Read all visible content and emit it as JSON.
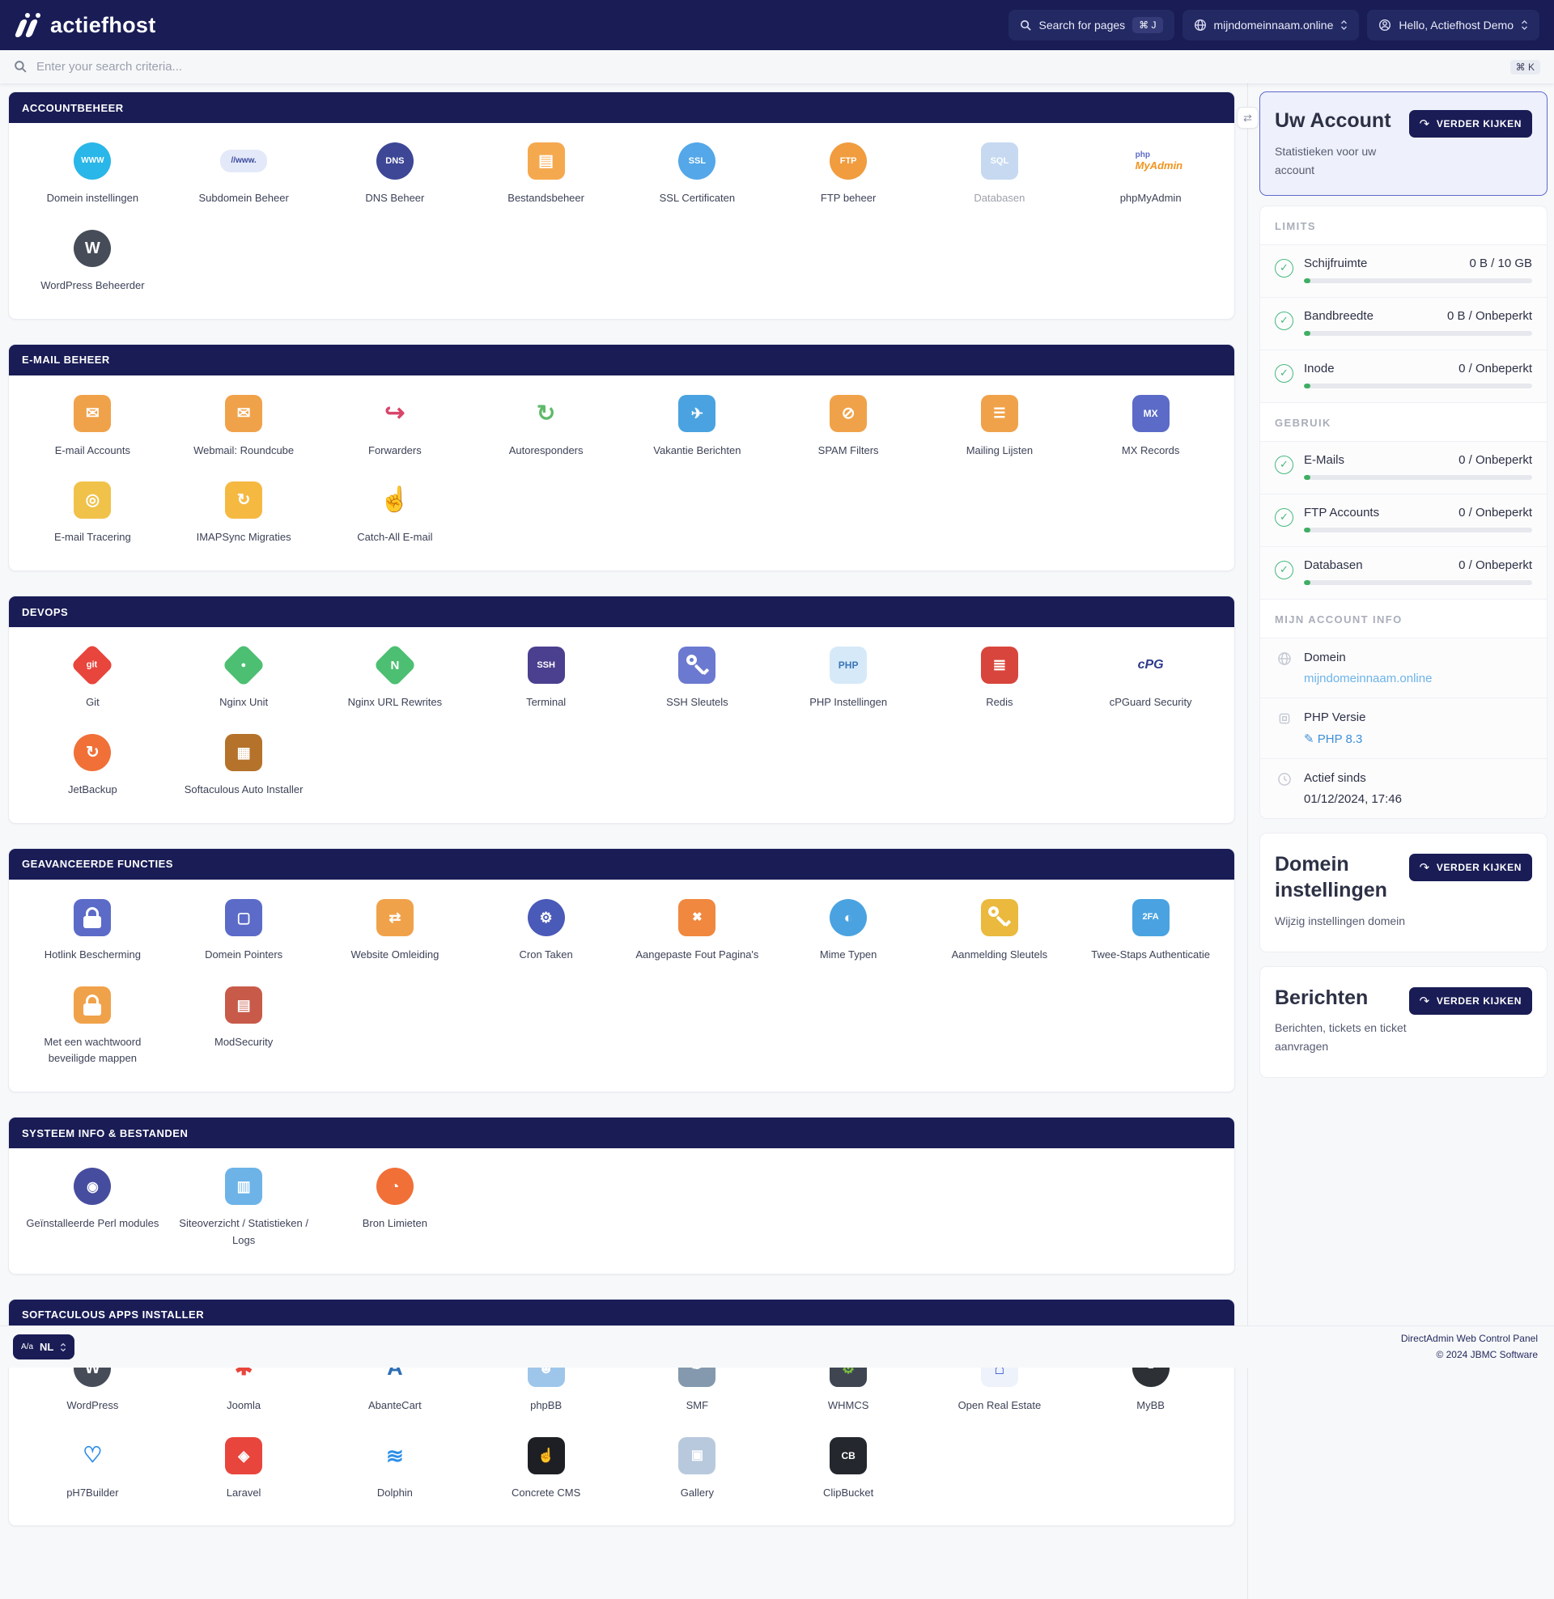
{
  "header": {
    "logo": "actiefhost",
    "search_pages_label": "Search for pages",
    "search_pages_shortcut": "⌘ J",
    "domain_selector": "mijndomeinnaam.online",
    "user_menu": "Hello, Actiefhost Demo"
  },
  "search": {
    "placeholder": "Enter your search criteria...",
    "shortcut": "⌘ K"
  },
  "sections": [
    {
      "title": "ACCOUNTBEHEER",
      "items": [
        {
          "label": "Domein instellingen",
          "icon": {
            "name": "globe-www-icon",
            "kind": "badge",
            "shape": "circle",
            "bg": "#29b6e8",
            "fg": "#fff",
            "text": "WWW",
            "fs": 10
          }
        },
        {
          "label": "Subdomein Beheer",
          "icon": {
            "name": "url-bar-icon",
            "kind": "badge",
            "shape": "pill",
            "bg": "#e3e9f8",
            "fg": "#3b4a9f",
            "text": "//www.",
            "fs": 10
          }
        },
        {
          "label": "DNS Beheer",
          "icon": {
            "name": "dns-globe-icon",
            "kind": "badge",
            "shape": "circle",
            "bg": "#3d4796",
            "fg": "#fff",
            "text": "DNS",
            "fs": 11
          }
        },
        {
          "label": "Bestandsbeheer",
          "icon": {
            "name": "folder-icon",
            "kind": "badge",
            "shape": "square",
            "bg": "#f5a94e",
            "fg": "#fff",
            "text": "▤",
            "fs": 20
          }
        },
        {
          "label": "SSL Certificaten",
          "icon": {
            "name": "ssl-badge-icon",
            "kind": "badge",
            "shape": "circle",
            "bg": "#54a7e8",
            "fg": "#fff",
            "text": "SSL",
            "fs": 11
          }
        },
        {
          "label": "FTP beheer",
          "icon": {
            "name": "ftp-icon",
            "kind": "badge",
            "shape": "circle",
            "bg": "#f09c3f",
            "fg": "#fff",
            "text": "FTP",
            "fs": 11
          }
        },
        {
          "label": "Databasen",
          "muted": true,
          "icon": {
            "name": "sql-database-icon",
            "kind": "badge",
            "shape": "square",
            "bg": "#8fb4e3",
            "fg": "#fff",
            "text": "SQL",
            "fs": 11
          }
        },
        {
          "label": "phpMyAdmin",
          "icon": {
            "name": "phpmyadmin-logo",
            "kind": "pma"
          }
        },
        {
          "label": "WordPress Beheerder",
          "icon": {
            "name": "wordpress-logo",
            "kind": "badge",
            "shape": "circle",
            "bg": "#464c58",
            "fg": "#fff",
            "text": "W",
            "fs": 20
          }
        }
      ]
    },
    {
      "title": "E-MAIL BEHEER",
      "items": [
        {
          "label": "E-mail Accounts",
          "icon": {
            "name": "envelope-icon",
            "kind": "badge",
            "shape": "square",
            "bg": "#f0a24a",
            "fg": "#fff",
            "text": "✉",
            "fs": 20
          }
        },
        {
          "label": "Webmail: Roundcube",
          "icon": {
            "name": "roundcube-envelope-icon",
            "kind": "badge",
            "shape": "square",
            "bg": "#f0a24a",
            "fg": "#fff",
            "text": "✉",
            "fs": 20
          }
        },
        {
          "label": "Forwarders",
          "icon": {
            "name": "forward-arrow-icon",
            "kind": "text",
            "fg": "#d8456a",
            "text": "↪",
            "fs": 30
          }
        },
        {
          "label": "Autoresponders",
          "icon": {
            "name": "autoresponder-icon",
            "kind": "text",
            "fg": "#5fb96a",
            "text": "↻",
            "fs": 28
          }
        },
        {
          "label": "Vakantie Berichten",
          "icon": {
            "name": "vacation-message-icon",
            "kind": "badge",
            "shape": "square",
            "bg": "#4aa3e0",
            "fg": "#fff",
            "text": "✈",
            "fs": 18
          }
        },
        {
          "label": "SPAM Filters",
          "icon": {
            "name": "spam-filter-icon",
            "kind": "badge",
            "shape": "square",
            "bg": "#f0a24a",
            "fg": "#fff",
            "text": "⊘",
            "fs": 20
          }
        },
        {
          "label": "Mailing Lijsten",
          "icon": {
            "name": "mailing-list-icon",
            "kind": "badge",
            "shape": "square",
            "bg": "#f0a24a",
            "fg": "#fff",
            "text": "☰",
            "fs": 17
          }
        },
        {
          "label": "MX Records",
          "icon": {
            "name": "mx-records-icon",
            "kind": "badge",
            "shape": "square",
            "bg": "#5b6bc7",
            "fg": "#fff",
            "text": "MX",
            "fs": 12
          }
        },
        {
          "label": "E-mail Tracering",
          "icon": {
            "name": "email-trace-icon",
            "kind": "badge",
            "shape": "square",
            "bg": "#f0c24a",
            "fg": "#fff",
            "text": "◎",
            "fs": 20
          }
        },
        {
          "label": "IMAPSync Migraties",
          "icon": {
            "name": "imapsync-icon",
            "kind": "badge",
            "shape": "square",
            "bg": "#f5b942",
            "fg": "#fff",
            "text": "↻",
            "fs": 20
          }
        },
        {
          "label": "Catch-All E-mail",
          "icon": {
            "name": "catchall-hand-icon",
            "kind": "text",
            "fg": "#f0a24a",
            "text": "☝",
            "fs": 30
          }
        }
      ]
    },
    {
      "title": "DEVOPS",
      "items": [
        {
          "label": "Git",
          "icon": {
            "name": "git-logo",
            "kind": "badge",
            "shape": "diamond",
            "bg": "#e8453c",
            "fg": "#fff",
            "text": "git",
            "fs": 11
          }
        },
        {
          "label": "Nginx Unit",
          "icon": {
            "name": "nginx-unit-logo",
            "kind": "badge",
            "shape": "diamond",
            "bg": "#4cbf72",
            "fg": "#fff",
            "text": "●",
            "fs": 11
          }
        },
        {
          "label": "Nginx URL Rewrites",
          "icon": {
            "name": "nginx-logo",
            "kind": "badge",
            "shape": "diamond",
            "bg": "#4cbf72",
            "fg": "#fff",
            "text": "N",
            "fs": 15
          }
        },
        {
          "label": "Terminal",
          "icon": {
            "name": "terminal-icon",
            "kind": "badge",
            "shape": "square",
            "bg": "#4b3f8f",
            "fg": "#fff",
            "text": "SSH",
            "fs": 11
          }
        },
        {
          "label": "SSH Sleutels",
          "icon": {
            "name": "ssh-key-icon",
            "kind": "key",
            "bg": "#6b79d0"
          }
        },
        {
          "label": "PHP Instellingen",
          "icon": {
            "name": "php-logo",
            "kind": "badge",
            "shape": "square",
            "bg": "#d6e9f8",
            "fg": "#3b76b8",
            "text": "PHP",
            "fs": 12
          }
        },
        {
          "label": "Redis",
          "icon": {
            "name": "redis-logo",
            "kind": "badge",
            "shape": "square",
            "bg": "#d8453c",
            "fg": "#fff",
            "text": "≣",
            "fs": 20
          }
        },
        {
          "label": "cPGuard Security",
          "icon": {
            "name": "cpguard-logo",
            "kind": "text",
            "fg": "#2d3a8c",
            "text": "cPG",
            "fs": 16,
            "italic": true
          }
        },
        {
          "label": "JetBackup",
          "icon": {
            "name": "jetbackup-logo",
            "kind": "badge",
            "shape": "circle",
            "bg": "#f07038",
            "fg": "#fff",
            "text": "↻",
            "fs": 20
          }
        },
        {
          "label": "Softaculous Auto Installer",
          "icon": {
            "name": "softaculous-logo",
            "kind": "badge",
            "shape": "square",
            "bg": "#b5722a",
            "fg": "#fff",
            "text": "▦",
            "fs": 18
          }
        }
      ]
    },
    {
      "title": "GEAVANCEERDE FUNCTIES",
      "items": [
        {
          "label": "Hotlink Bescherming",
          "icon": {
            "name": "lock-icon",
            "kind": "lock",
            "bg": "#5b6bc7"
          }
        },
        {
          "label": "Domein Pointers",
          "icon": {
            "name": "monitor-icon",
            "kind": "badge",
            "shape": "square",
            "bg": "#5b6bc7",
            "fg": "#fff",
            "text": "▢",
            "fs": 18
          }
        },
        {
          "label": "Website Omleiding",
          "icon": {
            "name": "signpost-icon",
            "kind": "badge",
            "shape": "square",
            "bg": "#f0a24a",
            "fg": "#fff",
            "text": "⇄",
            "fs": 18
          }
        },
        {
          "label": "Cron Taken",
          "icon": {
            "name": "cron-robot-icon",
            "kind": "badge",
            "shape": "circle",
            "bg": "#4a5ab8",
            "fg": "#fff",
            "text": "⚙",
            "fs": 18
          }
        },
        {
          "label": "Aangepaste Fout Pagina's",
          "icon": {
            "name": "error-page-icon",
            "kind": "badge",
            "shape": "square",
            "bg": "#f0883f",
            "fg": "#fff",
            "text": "✖",
            "fs": 15
          }
        },
        {
          "label": "Mime Typen",
          "icon": {
            "name": "mime-types-icon",
            "kind": "badge",
            "shape": "circle",
            "bg": "#4aa3e0",
            "fg": "#fff",
            "text": "◐",
            "fs": 18
          }
        },
        {
          "label": "Aanmelding Sleutels",
          "icon": {
            "name": "login-key-icon",
            "kind": "key",
            "bg": "#eab93d"
          }
        },
        {
          "label": "Twee-Staps Authenticatie",
          "icon": {
            "name": "two-factor-icon",
            "kind": "badge",
            "shape": "square",
            "bg": "#4aa3e0",
            "fg": "#fff",
            "text": "2FA",
            "fs": 11
          }
        },
        {
          "label": "Met een wachtwoord beveiligde mappen",
          "icon": {
            "name": "folder-lock-icon",
            "kind": "lock",
            "bg": "#f0a24a"
          }
        },
        {
          "label": "ModSecurity",
          "icon": {
            "name": "modsecurity-icon",
            "kind": "badge",
            "shape": "square",
            "bg": "#c85a4a",
            "fg": "#fff",
            "text": "▤",
            "fs": 18
          }
        }
      ]
    },
    {
      "title": "SYSTEEM INFO & BESTANDEN",
      "items": [
        {
          "label": "Geïnstalleerde Perl modules",
          "icon": {
            "name": "perl-logo",
            "kind": "badge",
            "shape": "circle",
            "bg": "#474d9e",
            "fg": "#fff",
            "text": "◉",
            "fs": 17
          }
        },
        {
          "label": "Siteoverzicht / Statistieken / Logs",
          "icon": {
            "name": "site-stats-icon",
            "kind": "badge",
            "shape": "square",
            "bg": "#6db3e8",
            "fg": "#fff",
            "text": "▥",
            "fs": 18
          }
        },
        {
          "label": "Bron Limieten",
          "icon": {
            "name": "gauge-icon",
            "kind": "badge",
            "shape": "circle",
            "bg": "#f07038",
            "fg": "#fff",
            "text": "◔",
            "fs": 18
          }
        }
      ]
    },
    {
      "title": "SOFTACULOUS APPS INSTALLER",
      "items": [
        {
          "label": "WordPress",
          "icon": {
            "name": "wordpress-logo",
            "kind": "badge",
            "shape": "circle",
            "bg": "#464c58",
            "fg": "#fff",
            "text": "W",
            "fs": 20
          }
        },
        {
          "label": "Joomla",
          "icon": {
            "name": "joomla-logo",
            "kind": "text",
            "fg": "#e8453c",
            "text": "✱",
            "fs": 27
          }
        },
        {
          "label": "AbanteCart",
          "icon": {
            "name": "abantecart-logo",
            "kind": "text",
            "fg": "#2d6db5",
            "text": "A",
            "fs": 27
          }
        },
        {
          "label": "phpBB",
          "icon": {
            "name": "phpbb-logo",
            "kind": "badge",
            "shape": "square",
            "bg": "#9ec6ea",
            "fg": "#fff",
            "text": "☻",
            "fs": 18
          }
        },
        {
          "label": "SMF",
          "icon": {
            "name": "smf-logo",
            "kind": "badge",
            "shape": "square",
            "bg": "#8499ad",
            "fg": "#fff",
            "text": "✒",
            "fs": 16
          }
        },
        {
          "label": "WHMCS",
          "icon": {
            "name": "whmcs-logo",
            "kind": "badge",
            "shape": "square",
            "bg": "#3f4652",
            "fg": "#7ac142",
            "text": "⚙",
            "fs": 18
          }
        },
        {
          "label": "Open Real Estate",
          "icon": {
            "name": "openrealestate-logo",
            "kind": "badge",
            "shape": "square",
            "bg": "#eef2fb",
            "fg": "#3b5bd0",
            "text": "⌂",
            "fs": 22
          }
        },
        {
          "label": "MyBB",
          "icon": {
            "name": "mybb-logo",
            "kind": "badge",
            "shape": "circle",
            "bg": "#2d3136",
            "fg": "#fff",
            "text": "❝",
            "fs": 14
          }
        },
        {
          "label": "pH7Builder",
          "icon": {
            "name": "ph7builder-logo",
            "kind": "text",
            "fg": "#2d8fe8",
            "text": "♡",
            "fs": 27
          }
        },
        {
          "label": "Laravel",
          "icon": {
            "name": "laravel-logo",
            "kind": "badge",
            "shape": "square",
            "bg": "#e8453c",
            "fg": "#fff",
            "text": "◈",
            "fs": 18
          }
        },
        {
          "label": "Dolphin",
          "icon": {
            "name": "dolphin-logo",
            "kind": "text",
            "fg": "#2d8fe8",
            "text": "≋",
            "fs": 26
          }
        },
        {
          "label": "Concrete CMS",
          "icon": {
            "name": "concretecms-logo",
            "kind": "badge",
            "shape": "square",
            "bg": "#1d1f24",
            "fg": "#fff",
            "text": "☝",
            "fs": 17
          }
        },
        {
          "label": "Gallery",
          "icon": {
            "name": "gallery-logo",
            "kind": "badge",
            "shape": "square",
            "bg": "#b8c9dd",
            "fg": "#fff",
            "text": "▣",
            "fs": 16
          }
        },
        {
          "label": "ClipBucket",
          "icon": {
            "name": "clipbucket-logo",
            "kind": "badge",
            "shape": "square",
            "bg": "#24272e",
            "fg": "#fff",
            "text": "CB",
            "fs": 12
          }
        }
      ]
    }
  ],
  "sidebar": {
    "account": {
      "title": "Uw Account",
      "subtitle": "Statistieken voor uw account",
      "button": "VERDER KIJKEN"
    },
    "limits_title": "LIMITS",
    "limits": [
      {
        "label": "Schijfruimte",
        "value": "0 B / 10 GB",
        "percent": 3
      },
      {
        "label": "Bandbreedte",
        "value": "0 B / Onbeperkt",
        "percent": 3
      },
      {
        "label": "Inode",
        "value": "0 / Onbeperkt",
        "percent": 3
      }
    ],
    "usage_title": "GEBRUIK",
    "usage": [
      {
        "label": "E-Mails",
        "value": "0 / Onbeperkt",
        "percent": 3
      },
      {
        "label": "FTP Accounts",
        "value": "0 / Onbeperkt",
        "percent": 3
      },
      {
        "label": "Databasen",
        "value": "0 / Onbeperkt",
        "percent": 3
      }
    ],
    "info_title": "MIJN ACCOUNT INFO",
    "info": [
      {
        "label": "Domein",
        "value": "mijndomeinnaam.online",
        "style": "link",
        "icon": "globe-icon"
      },
      {
        "label": "PHP Versie",
        "value": "PHP 8.3",
        "style": "action",
        "prefix": "✎",
        "icon": "chip-icon"
      },
      {
        "label": "Actief sinds",
        "value": "01/12/2024, 17:46",
        "style": "plain",
        "icon": "clock-icon"
      }
    ],
    "cards": [
      {
        "title": "Domein instellingen",
        "subtitle": "Wijzig instellingen domein",
        "button": "VERDER KIJKEN"
      },
      {
        "title": "Berichten",
        "subtitle": "Berichten, tickets en ticket aanvragen",
        "button": "VERDER KIJKEN"
      }
    ]
  },
  "footer": {
    "language": "NL",
    "line1": "DirectAdmin Web Control Panel",
    "line2": "© 2024 JBMC Software"
  }
}
